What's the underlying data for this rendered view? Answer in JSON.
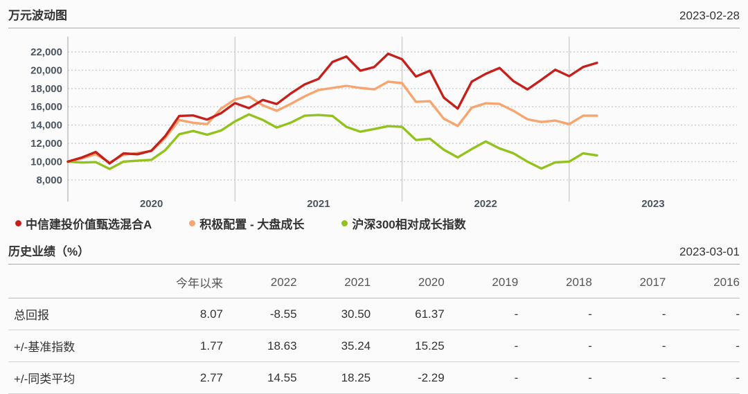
{
  "chart_section": {
    "title": "万元波动图",
    "date": "2023-02-28"
  },
  "chart_data": {
    "type": "line",
    "title": "万元波动图",
    "x_axis": {
      "labels": [
        "2020",
        "2021",
        "2022",
        "2023"
      ],
      "start": "2020-01",
      "end": "2023-02"
    },
    "y_axis": {
      "min": 8000,
      "max": 22000,
      "tick_step": 2000,
      "ticks": [
        22000,
        20000,
        18000,
        16000,
        14000,
        12000,
        10000,
        8000
      ],
      "tick_labels": [
        "22,000",
        "20,000",
        "18,000",
        "16,000",
        "14,000",
        "12,000",
        "10,000",
        "8,000"
      ]
    },
    "grid": "dotted-horizontal, solid vertical year separators",
    "legend_position": "bottom-left",
    "series": [
      {
        "name": "中信建投价值甄选混合A",
        "color": "#c5201c",
        "values": [
          10000,
          10450,
          11050,
          9800,
          10900,
          10800,
          11200,
          12800,
          15000,
          15050,
          14600,
          15300,
          16400,
          15850,
          16750,
          16300,
          17450,
          18450,
          19050,
          20900,
          21500,
          19950,
          20350,
          21800,
          21200,
          19300,
          19950,
          17000,
          15800,
          18750,
          19600,
          20250,
          18800,
          17900,
          18950,
          20050,
          19350,
          20350,
          20800
        ]
      },
      {
        "name": "积极配置 - 大盘成长",
        "color": "#f8a46e",
        "values": [
          10000,
          10350,
          10800,
          9900,
          10750,
          10950,
          11150,
          12600,
          14550,
          14250,
          14100,
          15800,
          16800,
          17150,
          16160,
          15560,
          16310,
          17140,
          17830,
          18060,
          18290,
          18060,
          17900,
          18740,
          18590,
          16540,
          16610,
          14700,
          13900,
          15900,
          16390,
          16310,
          15550,
          14640,
          14330,
          14490,
          14100,
          15020,
          15020
        ]
      },
      {
        "name": "沪深300相对成长指数",
        "color": "#93c21d",
        "values": [
          10000,
          9900,
          9950,
          9200,
          10000,
          10100,
          10200,
          11260,
          13000,
          13350,
          12950,
          13400,
          14400,
          15170,
          14560,
          13730,
          14260,
          15020,
          15100,
          15000,
          13800,
          13270,
          13570,
          13880,
          13800,
          12360,
          12510,
          11300,
          10460,
          11370,
          12210,
          11440,
          10910,
          10000,
          9240,
          9920,
          10000,
          10910,
          10680
        ]
      }
    ]
  },
  "table_section": {
    "title": "历史业绩（%）",
    "date": "2023-03-01",
    "columns": [
      "今年以来",
      "2022",
      "2021",
      "2020",
      "2019",
      "2018",
      "2017",
      "2016"
    ],
    "rows": [
      {
        "label": "总回报",
        "values": [
          "8.07",
          "-8.55",
          "30.50",
          "61.37",
          "-",
          "-",
          "-",
          "-"
        ]
      },
      {
        "label": "+/-基准指数",
        "values": [
          "1.77",
          "18.63",
          "35.24",
          "15.25",
          "-",
          "-",
          "-",
          "-"
        ]
      },
      {
        "label": "+/-同类平均",
        "values": [
          "2.77",
          "14.55",
          "18.25",
          "-2.29",
          "-",
          "-",
          "-",
          "-"
        ]
      }
    ]
  }
}
